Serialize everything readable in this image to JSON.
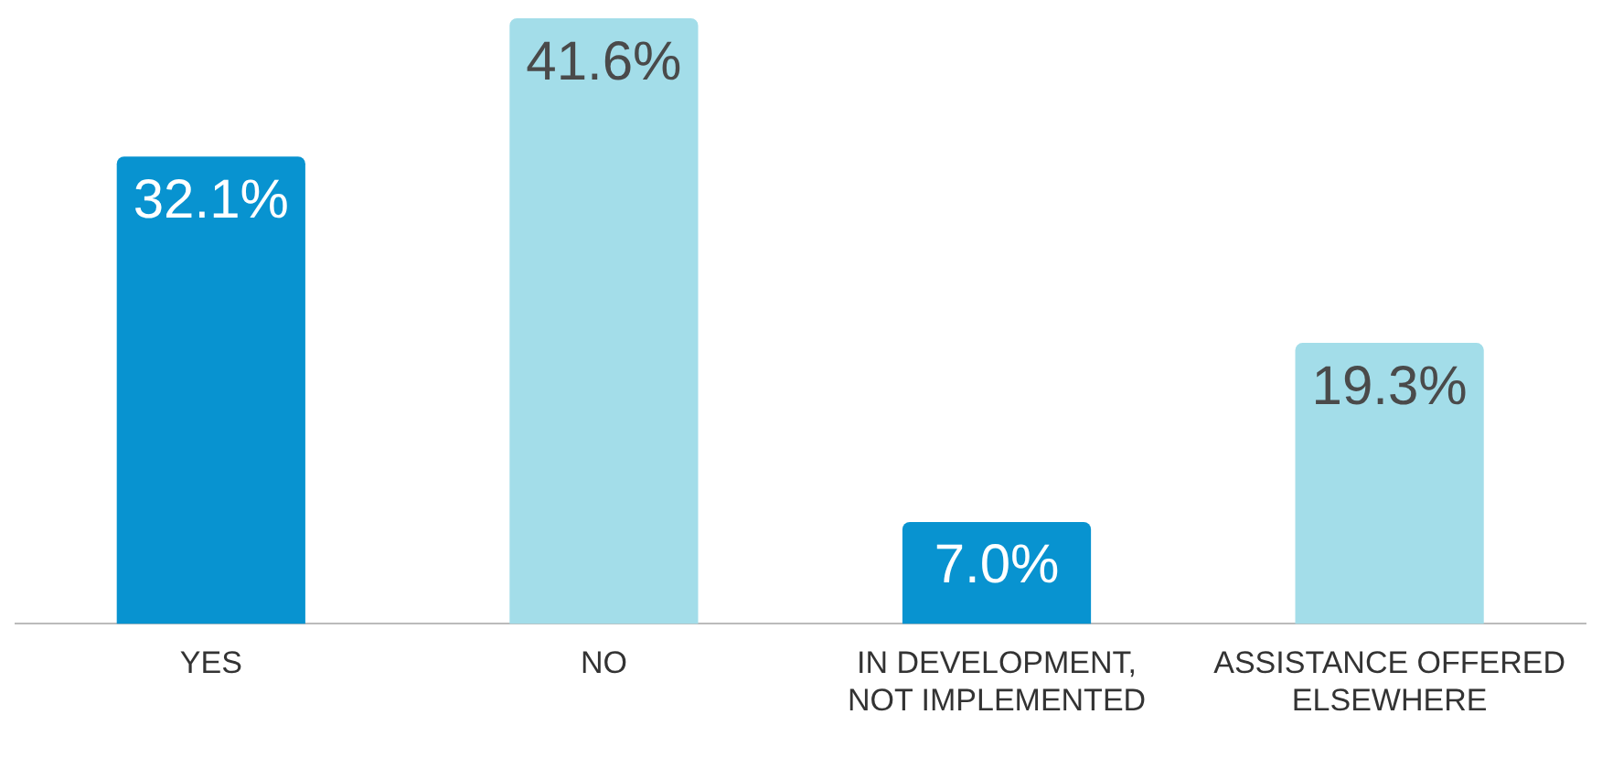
{
  "chart_data": {
    "type": "bar",
    "categories": [
      "YES",
      "NO",
      "IN DEVELOPMENT, NOT IMPLEMENTED",
      "ASSISTANCE OFFERED ELSEWHERE"
    ],
    "values": [
      32.1,
      41.6,
      7.0,
      19.3
    ],
    "colors": [
      "#0893d0",
      "#a3dde9",
      "#0893d0",
      "#a3dde9"
    ],
    "value_labels": [
      "32.1%",
      "41.6%",
      "7.0%",
      "19.3%"
    ],
    "grid": false,
    "legend": false
  }
}
